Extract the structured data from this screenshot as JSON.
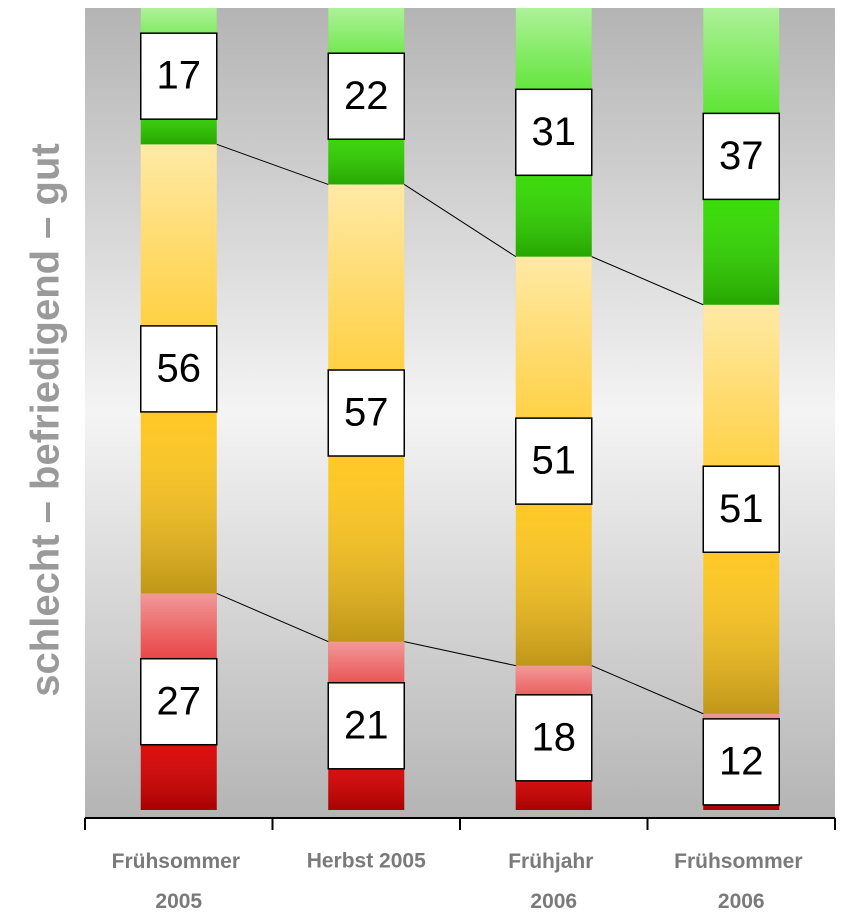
{
  "chart_data": {
    "type": "stacked_bar",
    "y_label": "schlecht – befriedigend – gut",
    "categories": [
      "Frühsommer 2005",
      "Herbst 2005",
      "Frühjahr 2006",
      "Frühsommer 2006"
    ],
    "series": [
      {
        "color": "#e00000",
        "values": [
          27,
          21,
          18,
          12
        ]
      },
      {
        "color": "#ffc820",
        "values": [
          56,
          57,
          51,
          51
        ]
      },
      {
        "color": "#33dd00",
        "values": [
          17,
          22,
          31,
          37
        ]
      }
    ],
    "ylim": [
      0,
      100
    ]
  }
}
